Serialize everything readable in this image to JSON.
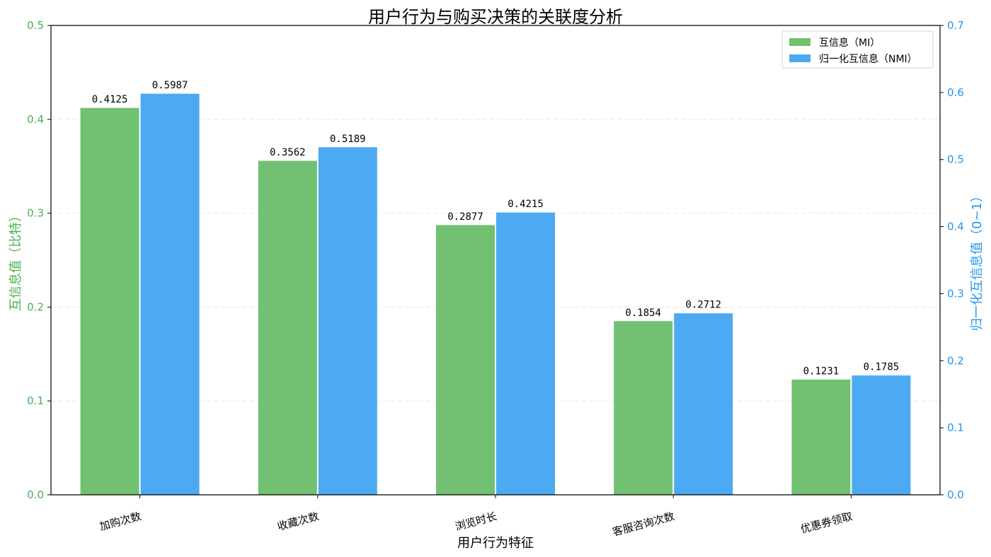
{
  "chart_data": {
    "type": "bar",
    "title": "用户行为与购买决策的关联度分析",
    "xlabel": "用户行为特征",
    "ylabel_left": "互信息值（比特）",
    "ylabel_right": "归一化互信息值（0~1）",
    "categories": [
      "加购次数",
      "收藏次数",
      "浏览时长",
      "客服咨询次数",
      "优惠券领取"
    ],
    "series": [
      {
        "name": "互信息（MI）",
        "axis": "left",
        "color": "#72c072",
        "values": [
          0.4125,
          0.3562,
          0.2877,
          0.1854,
          0.1231
        ],
        "labels": [
          "0.4125",
          "0.3562",
          "0.2877",
          "0.1854",
          "0.1231"
        ]
      },
      {
        "name": "归一化互信息（NMI）",
        "axis": "right",
        "color": "#4baaf1",
        "values": [
          0.5987,
          0.5189,
          0.4215,
          0.2712,
          0.1785
        ],
        "labels": [
          "0.5987",
          "0.5189",
          "0.4215",
          "0.2712",
          "0.1785"
        ]
      }
    ],
    "ylim_left": [
      0,
      0.5
    ],
    "ylim_right": [
      0,
      0.7
    ],
    "yticks_left": [
      "0.0",
      "0.1",
      "0.2",
      "0.3",
      "0.4",
      "0.5"
    ],
    "yticks_right": [
      "0.0",
      "0.1",
      "0.2",
      "0.3",
      "0.4",
      "0.5",
      "0.6",
      "0.7"
    ],
    "left_axis_color": "#4caf50",
    "right_axis_color": "#2196f3",
    "grid": true,
    "legend_position": "top-right"
  }
}
